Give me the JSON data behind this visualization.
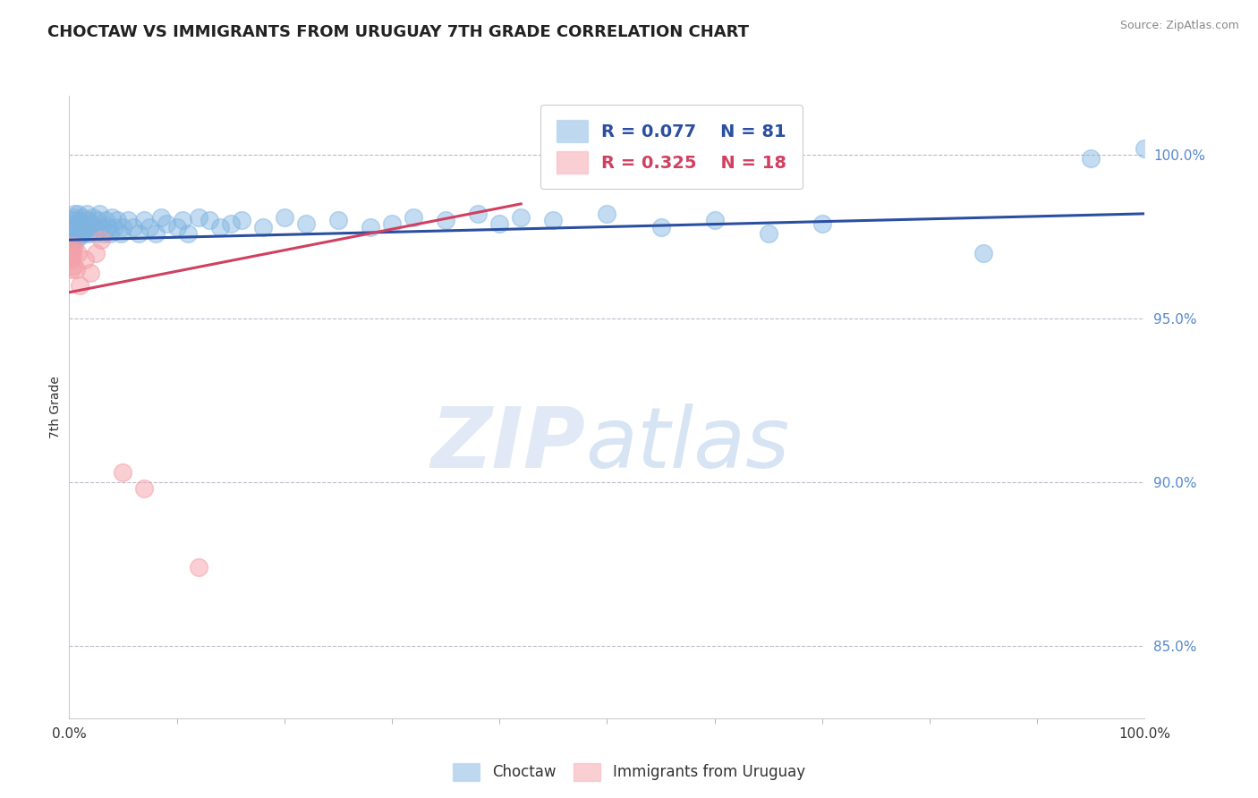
{
  "title": "CHOCTAW VS IMMIGRANTS FROM URUGUAY 7TH GRADE CORRELATION CHART",
  "source": "Source: ZipAtlas.com",
  "ylabel": "7th Grade",
  "xlim": [
    0.0,
    1.0
  ],
  "ylim": [
    0.828,
    1.018
  ],
  "yticks": [
    0.85,
    0.9,
    0.95,
    1.0
  ],
  "ytick_labels": [
    "85.0%",
    "90.0%",
    "95.0%",
    "100.0%"
  ],
  "xticks": [
    0.0,
    1.0
  ],
  "xtick_labels": [
    "0.0%",
    "100.0%"
  ],
  "blue_R": 0.077,
  "blue_N": 81,
  "pink_R": 0.325,
  "pink_N": 18,
  "blue_color": "#7EB3E0",
  "pink_color": "#F4A0A8",
  "blue_line_color": "#2B4FA0",
  "pink_line_color": "#D04060",
  "watermark_zip": "ZIP",
  "watermark_atlas": "atlas",
  "legend_label_blue": "Choctaw",
  "legend_label_pink": "Immigrants from Uruguay",
  "blue_line_x": [
    0.0,
    1.0
  ],
  "blue_line_y": [
    0.974,
    0.982
  ],
  "pink_line_x": [
    0.0,
    0.42
  ],
  "pink_line_y": [
    0.958,
    0.985
  ],
  "blue_scatter_x": [
    0.0,
    0.001,
    0.001,
    0.002,
    0.002,
    0.003,
    0.003,
    0.003,
    0.004,
    0.004,
    0.005,
    0.005,
    0.006,
    0.006,
    0.007,
    0.008,
    0.008,
    0.009,
    0.009,
    0.01,
    0.011,
    0.012,
    0.013,
    0.014,
    0.015,
    0.016,
    0.017,
    0.018,
    0.019,
    0.02,
    0.022,
    0.024,
    0.025,
    0.026,
    0.028,
    0.03,
    0.032,
    0.034,
    0.036,
    0.038,
    0.04,
    0.042,
    0.045,
    0.048,
    0.05,
    0.055,
    0.06,
    0.065,
    0.07,
    0.075,
    0.08,
    0.085,
    0.09,
    0.1,
    0.105,
    0.11,
    0.12,
    0.13,
    0.14,
    0.15,
    0.16,
    0.18,
    0.2,
    0.22,
    0.25,
    0.28,
    0.3,
    0.32,
    0.35,
    0.38,
    0.4,
    0.42,
    0.45,
    0.5,
    0.55,
    0.6,
    0.65,
    0.7,
    0.85,
    0.95,
    1.0
  ],
  "blue_scatter_y": [
    0.978,
    0.972,
    0.976,
    0.978,
    0.975,
    0.98,
    0.976,
    0.972,
    0.978,
    0.981,
    0.976,
    0.982,
    0.978,
    0.975,
    0.979,
    0.982,
    0.977,
    0.975,
    0.98,
    0.978,
    0.976,
    0.981,
    0.979,
    0.976,
    0.978,
    0.982,
    0.98,
    0.978,
    0.976,
    0.979,
    0.981,
    0.978,
    0.976,
    0.98,
    0.982,
    0.978,
    0.976,
    0.98,
    0.978,
    0.976,
    0.981,
    0.978,
    0.98,
    0.976,
    0.978,
    0.98,
    0.978,
    0.976,
    0.98,
    0.978,
    0.976,
    0.981,
    0.979,
    0.978,
    0.98,
    0.976,
    0.981,
    0.98,
    0.978,
    0.979,
    0.98,
    0.978,
    0.981,
    0.979,
    0.98,
    0.978,
    0.979,
    0.981,
    0.98,
    0.982,
    0.979,
    0.981,
    0.98,
    0.982,
    0.978,
    0.98,
    0.976,
    0.979,
    0.97,
    0.999,
    1.002
  ],
  "pink_scatter_x": [
    0.0,
    0.001,
    0.001,
    0.002,
    0.002,
    0.003,
    0.004,
    0.005,
    0.006,
    0.008,
    0.01,
    0.015,
    0.02,
    0.025,
    0.03,
    0.05,
    0.07,
    0.12
  ],
  "pink_scatter_y": [
    0.972,
    0.968,
    0.97,
    0.965,
    0.971,
    0.969,
    0.966,
    0.972,
    0.965,
    0.97,
    0.96,
    0.968,
    0.964,
    0.97,
    0.974,
    0.903,
    0.898,
    0.874
  ]
}
